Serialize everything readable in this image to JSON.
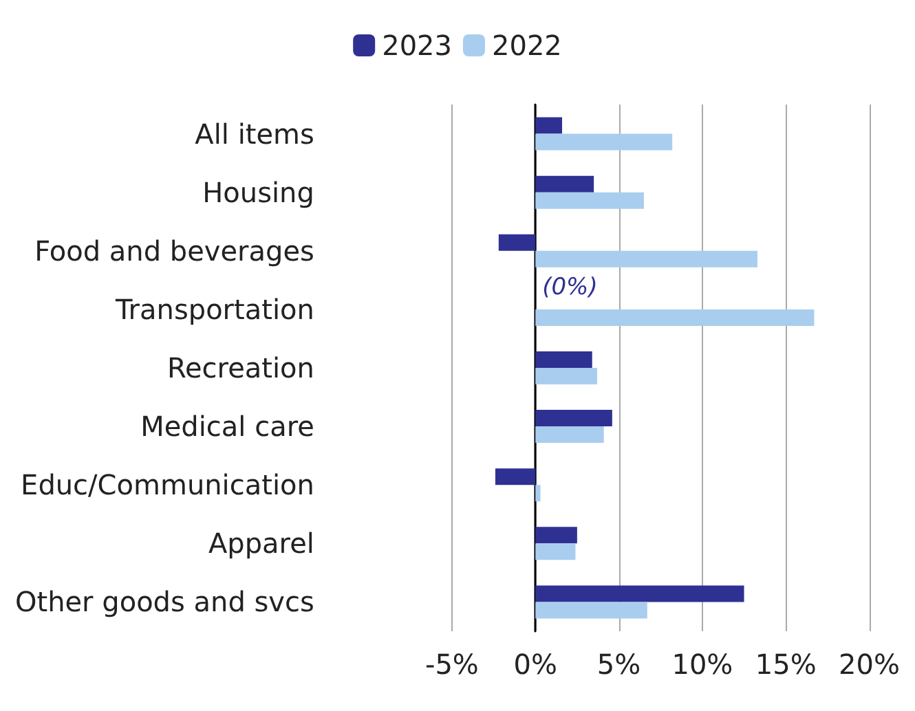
{
  "chart_data": {
    "type": "bar",
    "orientation": "horizontal",
    "categories": [
      "All items",
      "Housing",
      "Food and beverages",
      "Transportation",
      "Recreation",
      "Medical care",
      "Educ/Communication",
      "Apparel",
      "Other goods and svcs"
    ],
    "series": [
      {
        "name": "2023",
        "color": "#2e3192",
        "values": [
          1.6,
          3.5,
          -2.2,
          0,
          3.4,
          4.6,
          -2.4,
          2.5,
          12.5
        ]
      },
      {
        "name": "2022",
        "color": "#a9cdee",
        "values": [
          8.2,
          6.5,
          13.3,
          16.7,
          3.7,
          4.1,
          0.3,
          2.4,
          6.7
        ]
      }
    ],
    "xlim": [
      -5,
      20
    ],
    "xticks": [
      {
        "value": -5,
        "label": "-5%"
      },
      {
        "value": 0,
        "label": "0%"
      },
      {
        "value": 5,
        "label": "5%"
      },
      {
        "value": 10,
        "label": "10%"
      },
      {
        "value": 15,
        "label": "15%"
      },
      {
        "value": 20,
        "label": "20%"
      }
    ],
    "annotations": [
      {
        "text": "(0%)",
        "x": 0,
        "y": "Transportation"
      }
    ],
    "grid": "x",
    "legend": "top"
  }
}
